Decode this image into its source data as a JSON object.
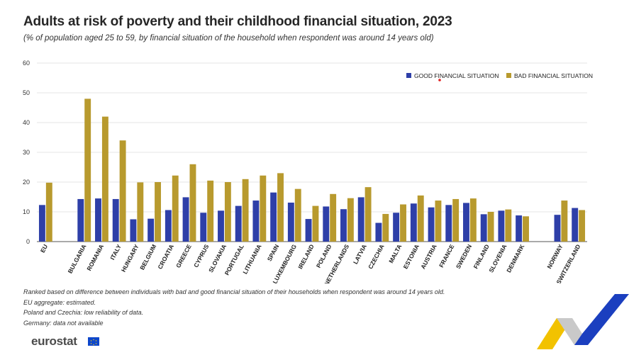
{
  "title": "Adults at risk of poverty and their childhood financial situation, 2023",
  "subtitle": "(% of population aged 25 to 59, by financial situation of the household when respondent was around 14 years old)",
  "notes": [
    "Ranked based on difference between individuals with bad and good financial situation of their households when respondent was around 14 years old.",
    "EU aggregate: estimated.",
    "Poland and Czechia: low reliability of data.",
    "Germany: data not available"
  ],
  "logo_text": "eurostat",
  "colors": {
    "good": "#2e3fa8",
    "bad": "#b89a2e",
    "grid": "#dddddd",
    "accent_red": "#e02020"
  },
  "chart_data": {
    "type": "bar",
    "title": "Adults at risk of poverty and their childhood financial situation, 2023",
    "ylim": [
      0,
      60
    ],
    "yticks": [
      0,
      10,
      20,
      30,
      40,
      50,
      60
    ],
    "legend_position": "top-right",
    "categories": [
      "EU",
      "Bulgaria",
      "Romania",
      "Italy",
      "Hungary",
      "Belgium",
      "Croatia",
      "Greece",
      "Cyprus",
      "Slovakia",
      "Portugal",
      "Lithuania",
      "Spain",
      "Luxembourg",
      "Ireland",
      "Poland",
      "Netherlands",
      "Latvia",
      "Czechia",
      "Malta",
      "Estonia",
      "Austria",
      "France",
      "Sweden",
      "Finland",
      "Slovenia",
      "Denmark",
      "Norway",
      "Switzerland"
    ],
    "category_labels": [
      "EU",
      "BULGARIA",
      "ROMANIA",
      "ITALY",
      "HUNGARY",
      "BELGIUM",
      "CROATIA",
      "GREECE",
      "CYPRUS",
      "SLOVAKIA",
      "PORTUGAL",
      "LITHUANIA",
      "SPAIN",
      "LUXEMBOURG",
      "IRELAND",
      "POLAND",
      "NETHERLANDS",
      "LATVIA",
      "CZECHIA",
      "MALTA",
      "ESTONIA",
      "AUSTRIA",
      "FRANCE",
      "SWEDEN",
      "FINLAND",
      "SLOVENIA",
      "DENMARK",
      "NORWAY",
      "SWITZERLAND"
    ],
    "groups": [
      1,
      26,
      2
    ],
    "series": [
      {
        "name": "GOOD FINANCIAL SITUATION",
        "values": [
          12.3,
          14.3,
          14.5,
          14.3,
          7.5,
          7.7,
          10.6,
          14.9,
          9.7,
          10.4,
          12.0,
          13.8,
          16.5,
          13.1,
          7.6,
          11.8,
          10.9,
          14.9,
          6.3,
          9.7,
          12.8,
          11.5,
          12.3,
          13.0,
          9.2,
          10.4,
          8.8,
          9.0,
          11.3
        ]
      },
      {
        "name": "BAD FINANCIAL SITUATION",
        "values": [
          19.8,
          48.0,
          42.0,
          34.0,
          19.9,
          20.0,
          22.2,
          26.0,
          20.5,
          20.0,
          21.0,
          22.2,
          23.0,
          17.7,
          12.0,
          16.0,
          14.6,
          18.3,
          9.3,
          12.5,
          15.5,
          13.8,
          14.3,
          14.5,
          10.0,
          10.8,
          8.5,
          13.8,
          10.6
        ]
      }
    ]
  }
}
